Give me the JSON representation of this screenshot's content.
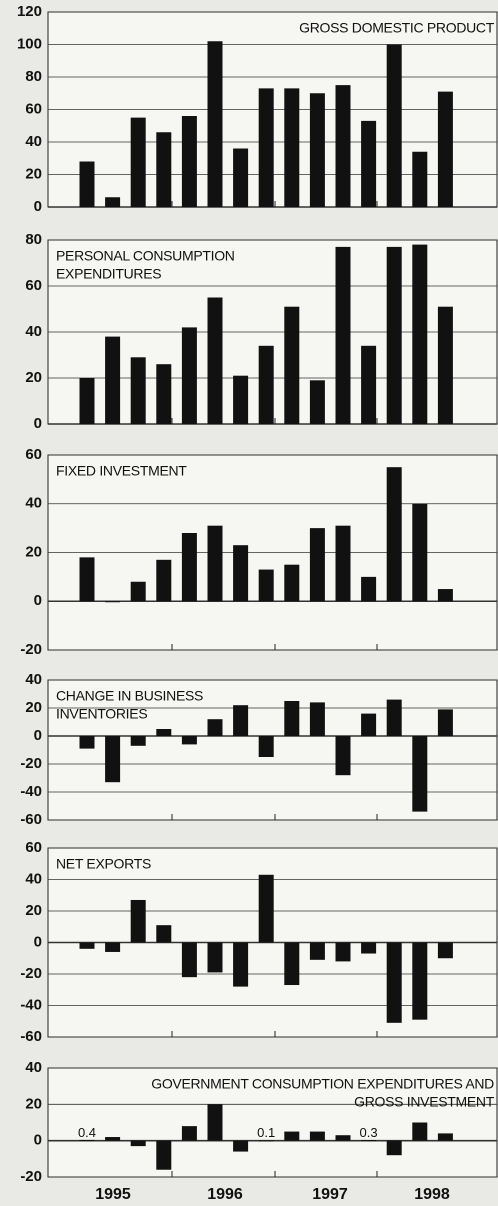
{
  "x_labels": [
    "1995",
    "1996",
    "1997",
    "1998"
  ],
  "chart_data": [
    {
      "type": "bar",
      "title": [
        "GROSS DOMESTIC PRODUCT"
      ],
      "title_align": "right",
      "color": "#111111",
      "values": [
        28,
        6,
        55,
        46,
        56,
        102,
        36,
        73,
        73,
        70,
        75,
        53,
        100,
        34,
        71
      ],
      "ylim": [
        0,
        120
      ],
      "yticks": [
        0,
        20,
        40,
        60,
        80,
        100,
        120
      ],
      "grid": true
    },
    {
      "type": "bar",
      "title": [
        "PERSONAL CONSUMPTION",
        "EXPENDITURES"
      ],
      "title_align": "left",
      "color": "#111111",
      "values": [
        20,
        38,
        29,
        26,
        42,
        55,
        21,
        34,
        51,
        19,
        77,
        34,
        77,
        78,
        51
      ],
      "ylim": [
        0,
        80
      ],
      "yticks": [
        0,
        20,
        40,
        60,
        80
      ],
      "grid": true
    },
    {
      "type": "bar",
      "title": [
        "FIXED INVESTMENT"
      ],
      "title_align": "left",
      "color": "#111111",
      "values": [
        18,
        0,
        8,
        17,
        28,
        31,
        23,
        13,
        15,
        30,
        31,
        10,
        55,
        40,
        5
      ],
      "ylim": [
        -20,
        60
      ],
      "yticks": [
        -20,
        0,
        20,
        40,
        60
      ],
      "grid": true
    },
    {
      "type": "bar",
      "title": [
        "CHANGE IN BUSINESS",
        "INVENTORIES"
      ],
      "title_align": "left",
      "color": "#111111",
      "values": [
        -9,
        -33,
        -7,
        5,
        -6,
        12,
        22,
        -15,
        25,
        24,
        -28,
        16,
        26,
        -54,
        19
      ],
      "ylim": [
        -60,
        40
      ],
      "yticks": [
        -60,
        -40,
        -20,
        0,
        20,
        40
      ],
      "grid": true
    },
    {
      "type": "bar",
      "title": [
        "NET EXPORTS"
      ],
      "title_align": "left",
      "color": "#111111",
      "values": [
        -4,
        -6,
        27,
        11,
        -22,
        -19,
        -28,
        43,
        -27,
        -11,
        -12,
        -7,
        -51,
        -49,
        -10
      ],
      "ylim": [
        -60,
        60
      ],
      "yticks": [
        -60,
        -40,
        -20,
        0,
        20,
        40,
        60
      ],
      "grid": true
    },
    {
      "type": "bar",
      "title": [
        "GOVERNMENT CONSUMPTION EXPENDITURES AND",
        "GROSS INVESTMENT"
      ],
      "title_align": "right",
      "color": "#111111",
      "values": [
        0.4,
        2,
        -3,
        -16,
        8,
        20,
        -6,
        0.1,
        5,
        5,
        3,
        0.3,
        -8,
        10,
        4
      ],
      "value_labels": [
        "0.4",
        null,
        null,
        null,
        null,
        null,
        null,
        "0.1",
        null,
        null,
        null,
        "0.3",
        null,
        null,
        null
      ],
      "ylim": [
        -20,
        40
      ],
      "yticks": [
        -20,
        0,
        20,
        40
      ],
      "grid": true
    }
  ]
}
